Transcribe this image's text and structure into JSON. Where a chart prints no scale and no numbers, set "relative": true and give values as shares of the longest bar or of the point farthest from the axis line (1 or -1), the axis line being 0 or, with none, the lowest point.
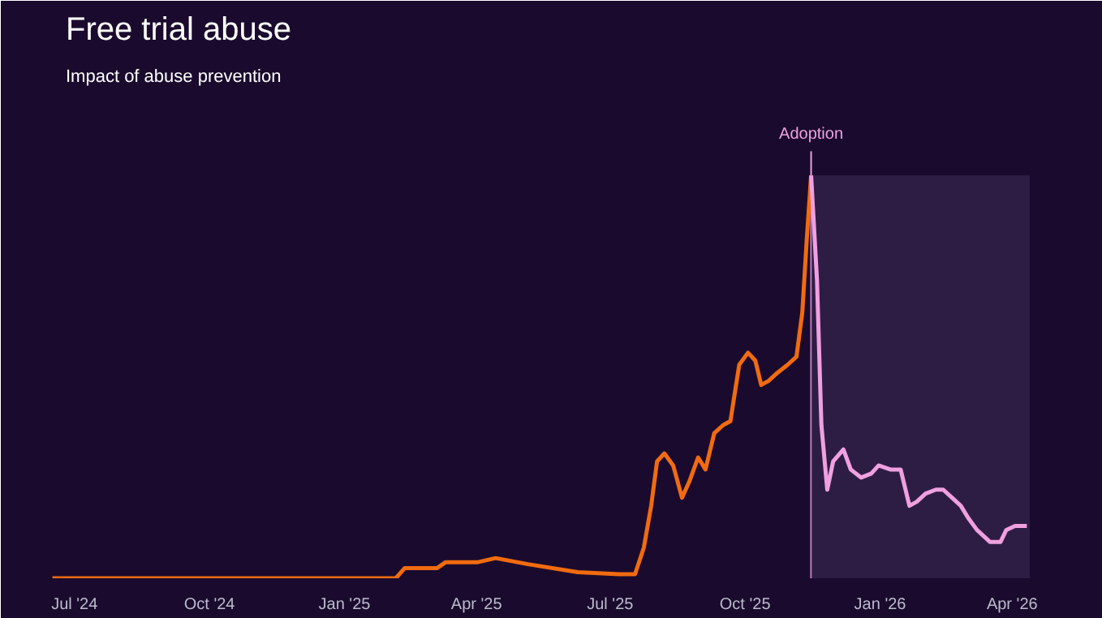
{
  "chart_data": {
    "type": "line",
    "title": "Free trial abuse",
    "subtitle": "Impact of abuse prevention",
    "relative": true,
    "xlim": [
      "2024-06-14",
      "2026-04-13"
    ],
    "xticks": [
      {
        "value": "2024-07-01",
        "label": "Jul '24"
      },
      {
        "value": "2024-10-01",
        "label": "Oct '24"
      },
      {
        "value": "2025-01-01",
        "label": "Jan '25"
      },
      {
        "value": "2025-04-01",
        "label": "Apr '25"
      },
      {
        "value": "2025-07-01",
        "label": "Jul '25"
      },
      {
        "value": "2025-10-01",
        "label": "Oct '25"
      },
      {
        "value": "2026-01-01",
        "label": "Jan '26"
      },
      {
        "value": "2026-04-01",
        "label": "Apr '26"
      }
    ],
    "grid": false,
    "series": [
      {
        "color": "#f26b0f",
        "x": [
          "2024-06-16",
          "2025-02-05",
          "2025-02-11",
          "2025-03-05",
          "2025-03-11",
          "2025-04-02",
          "2025-04-14",
          "2025-05-06",
          "2025-06-09",
          "2025-07-07",
          "2025-07-18",
          "2025-07-24",
          "2025-07-29",
          "2025-08-02",
          "2025-08-07",
          "2025-08-13",
          "2025-08-19",
          "2025-08-24",
          "2025-08-30",
          "2025-09-04",
          "2025-09-10",
          "2025-09-16",
          "2025-09-21",
          "2025-09-27",
          "2025-10-03",
          "2025-10-08",
          "2025-10-12",
          "2025-10-17",
          "2025-10-23",
          "2025-10-30",
          "2025-11-05",
          "2025-11-09",
          "2025-11-12",
          "2025-11-15"
        ],
        "values": [
          0,
          0,
          0.025,
          0.025,
          0.04,
          0.04,
          0.05,
          0.035,
          0.015,
          0.01,
          0.01,
          0.076,
          0.18,
          0.29,
          0.31,
          0.28,
          0.2,
          0.24,
          0.3,
          0.27,
          0.36,
          0.38,
          0.39,
          0.53,
          0.56,
          0.54,
          0.48,
          0.49,
          0.51,
          0.53,
          0.55,
          0.66,
          0.84,
          1.0
        ]
      },
      {
        "color": "#f0a0e0",
        "x": [
          "2025-11-15",
          "2025-11-19",
          "2025-11-22",
          "2025-11-26",
          "2025-11-30",
          "2025-12-07",
          "2025-12-12",
          "2025-12-19",
          "2025-12-26",
          "2025-12-31",
          "2026-01-08",
          "2026-01-15",
          "2026-01-21",
          "2026-01-26",
          "2026-02-01",
          "2026-02-08",
          "2026-02-13",
          "2026-02-19",
          "2026-02-25",
          "2026-03-02",
          "2026-03-08",
          "2026-03-17",
          "2026-03-24",
          "2026-03-28",
          "2026-04-03",
          "2026-04-11"
        ],
        "values": [
          1.0,
          0.74,
          0.38,
          0.22,
          0.29,
          0.32,
          0.27,
          0.25,
          0.26,
          0.28,
          0.27,
          0.27,
          0.18,
          0.19,
          0.21,
          0.22,
          0.22,
          0.2,
          0.18,
          0.15,
          0.12,
          0.09,
          0.09,
          0.12,
          0.13,
          0.13
        ]
      }
    ],
    "ref_lines": [
      {
        "axis": "x",
        "value": "2025-11-15",
        "label": "Adoption",
        "color": "#f0a0e0"
      }
    ],
    "bands": [
      {
        "axis": "x",
        "from": "2025-11-15",
        "to": "2026-04-13",
        "color": "#3a2a55"
      }
    ]
  }
}
